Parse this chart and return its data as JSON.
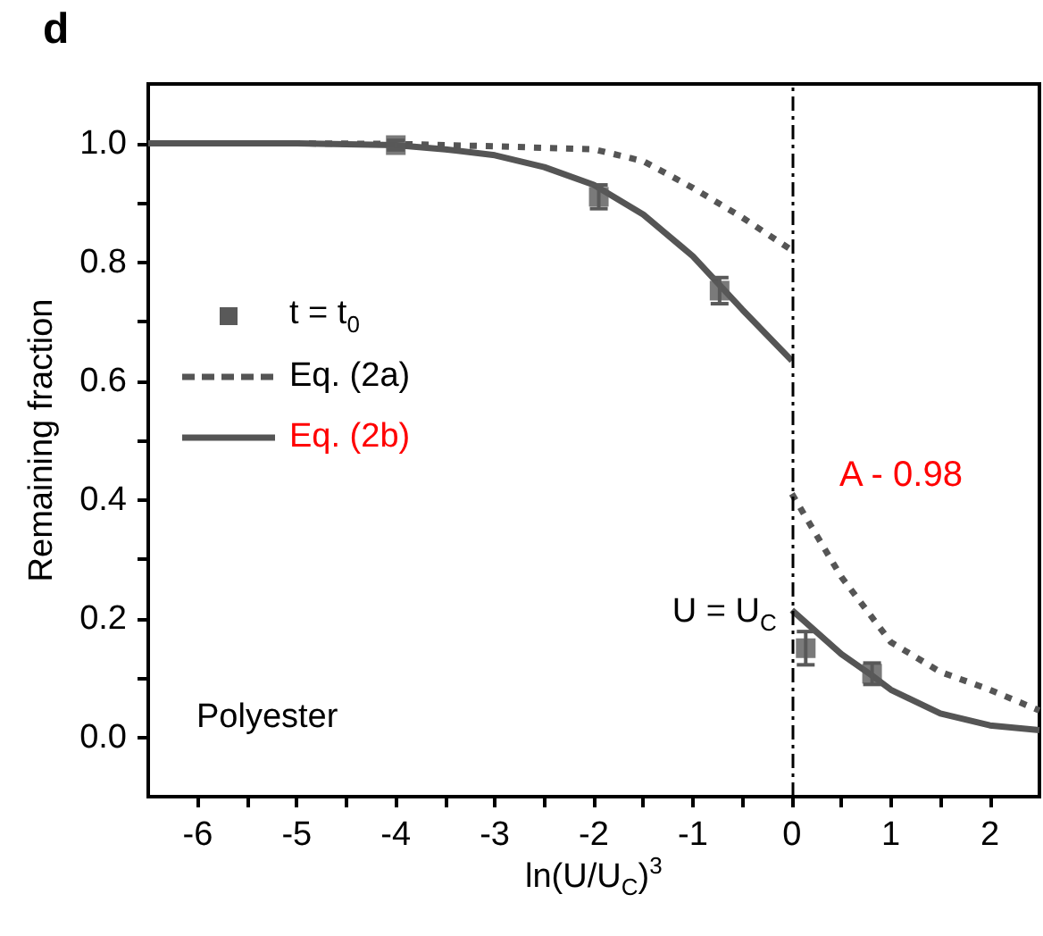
{
  "chart_data": {
    "type": "line",
    "title": "d",
    "xlabel": "ln(U/U$_{C}$)$^{3}$",
    "ylabel": "Remaining fraction",
    "xlim": [
      -6.5,
      2.5
    ],
    "xticks": [
      -6,
      {
        "value": -5.5,
        "label": null
      },
      -5,
      {
        "value": -4.5,
        "label": null
      },
      -4,
      {
        "value": -3.5,
        "label": null
      },
      -3,
      {
        "value": -2.5,
        "label": null
      },
      -2,
      {
        "value": -1.5,
        "label": null
      },
      -1,
      {
        "value": -0.5,
        "label": null
      },
      0,
      {
        "value": 0.5,
        "label": null
      },
      1,
      {
        "value": 1.5,
        "label": null
      },
      2
    ],
    "ylim": [
      -0.1,
      1.1
    ],
    "yticks": [
      {
        "value": 0,
        "label": "0.0"
      },
      {
        "value": 0.1,
        "label": null
      },
      {
        "value": 0.2,
        "label": "0.2"
      },
      {
        "value": 0.3,
        "label": null
      },
      {
        "value": 0.4,
        "label": "0.4"
      },
      {
        "value": 0.5,
        "label": null
      },
      {
        "value": 0.6,
        "label": "0.6"
      },
      {
        "value": 0.7,
        "label": null
      },
      {
        "value": 0.8,
        "label": "0.8"
      },
      {
        "value": 0.9,
        "label": null
      },
      {
        "value": 1.0,
        "label": "1.0"
      }
    ],
    "series": [
      {
        "name": "t = t$_{0}$",
        "type": "scatter",
        "marker": "square",
        "color": "#595959",
        "x": [
          -4,
          -1.95,
          -0.73,
          0.14,
          0.81
        ],
        "values": [
          0.997,
          0.91,
          0.752,
          0.15,
          0.107
        ],
        "errors": [
          0.008,
          0.02,
          0.022,
          0.028,
          0.018
        ]
      },
      {
        "name": "Eq. (2a)",
        "line_style": "dashed",
        "color": "#555555",
        "x": [
          -6.5,
          -5,
          -4,
          -3,
          -2,
          -1.5,
          -1,
          -0.5,
          0
        ],
        "values": [
          1.0,
          1.0,
          0.999,
          0.995,
          0.99,
          0.97,
          0.925,
          0.875,
          0.82
        ]
      },
      {
        "line_style": "dashed",
        "color": "#555555",
        "x": [
          0,
          0.5,
          1,
          1.5,
          2,
          2.5
        ],
        "values": [
          0.41,
          0.27,
          0.16,
          0.11,
          0.08,
          0.045
        ]
      },
      {
        "name": "Eq. (2b)",
        "line_style": "solid",
        "color": "#555555",
        "x": [
          -6.5,
          -5,
          -4,
          -3.5,
          -3,
          -2.5,
          -2,
          -1.5,
          -1,
          -0.5,
          0
        ],
        "values": [
          1.0,
          1.0,
          0.997,
          0.99,
          0.98,
          0.96,
          0.93,
          0.88,
          0.81,
          0.72,
          0.634
        ]
      },
      {
        "line_style": "solid",
        "color": "#555555",
        "x": [
          0,
          0.5,
          0.8,
          1,
          1.5,
          2,
          2.5
        ],
        "values": [
          0.214,
          0.14,
          0.105,
          0.08,
          0.04,
          0.02,
          0.012
        ]
      }
    ],
    "ref_lines": [
      {
        "axis": "x",
        "value": 0,
        "label": "U = U$_{C}$",
        "color": "#000000"
      }
    ],
    "annotations": [
      "A - 0.98",
      "Polyester"
    ],
    "legend": "left"
  }
}
